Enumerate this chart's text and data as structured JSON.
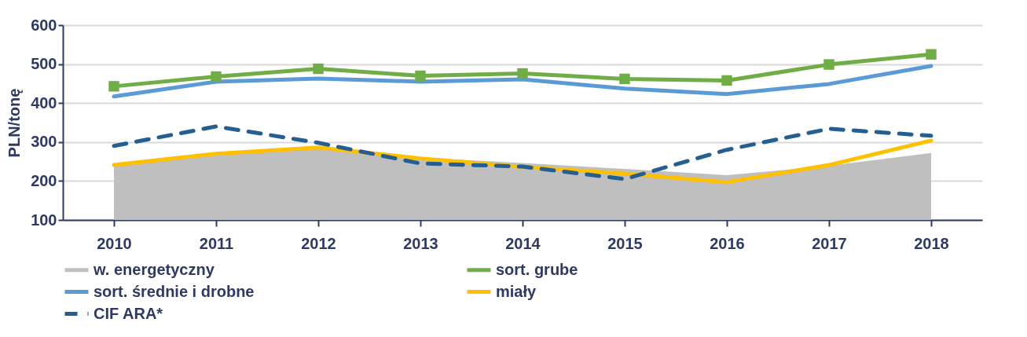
{
  "chart_data": {
    "type": "line",
    "ylabel": "PLN/tonę",
    "categories": [
      "2010",
      "2011",
      "2012",
      "2013",
      "2014",
      "2015",
      "2016",
      "2017",
      "2018"
    ],
    "ylim": [
      100,
      600
    ],
    "yticks": [
      100,
      200,
      300,
      400,
      500,
      600
    ],
    "grid": "y",
    "legend": "bottom",
    "series": [
      {
        "name": "w. energetyczny",
        "type": "area",
        "color": "#bfbfbf",
        "values": [
          243,
          268,
          288,
          260,
          246,
          231,
          215,
          239,
          272
        ]
      },
      {
        "name": "sort. grube",
        "color": "#70ad47",
        "marker": "square",
        "line_style": "solid",
        "values": [
          443,
          468,
          488,
          470,
          476,
          462,
          458,
          499,
          525
        ]
      },
      {
        "name": "sort. średnie i drobne",
        "color": "#5b9bd5",
        "line_style": "solid",
        "values": [
          417,
          455,
          463,
          455,
          461,
          437,
          423,
          449,
          495
        ]
      },
      {
        "name": "miały",
        "color": "#ffc000",
        "line_style": "solid",
        "values": [
          241,
          270,
          286,
          258,
          236,
          219,
          197,
          241,
          304
        ]
      },
      {
        "name": "CIF ARA*",
        "color": "#255e91",
        "line_style": "dashed",
        "values": [
          290,
          340,
          298,
          245,
          237,
          205,
          280,
          334,
          316
        ]
      }
    ]
  }
}
